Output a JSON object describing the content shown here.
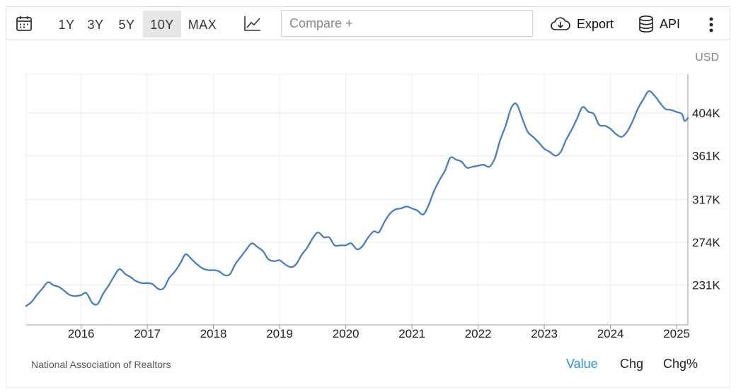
{
  "toolbar": {
    "ranges": [
      {
        "label": "1Y",
        "active": false
      },
      {
        "label": "3Y",
        "active": false
      },
      {
        "label": "5Y",
        "active": false
      },
      {
        "label": "10Y",
        "active": true
      },
      {
        "label": "MAX",
        "active": false
      }
    ],
    "compare_placeholder": "Compare +",
    "export_label": "Export",
    "api_label": "API",
    "icons": {
      "calendar": "calendar-icon",
      "chart_type": "line-chart-icon",
      "export": "cloud-download-icon",
      "api": "database-icon",
      "more": "more-vertical-icon"
    }
  },
  "unit": "USD",
  "source": "National Association of Realtors",
  "view_tabs": [
    {
      "label": "Value",
      "active": true
    },
    {
      "label": "Chg",
      "active": false
    },
    {
      "label": "Chg%",
      "active": false
    }
  ],
  "colors": {
    "line": "#4a7ebb",
    "active_tab": "#2a90d9",
    "grid": "#ececec"
  },
  "chart_data": {
    "type": "line",
    "title": "",
    "xlabel": "",
    "ylabel": "",
    "unit": "USD",
    "xlim": [
      2015.17,
      2025.17
    ],
    "ylim": [
      191000,
      443000
    ],
    "x_ticks": [
      {
        "value": 2016,
        "label": "2016"
      },
      {
        "value": 2017,
        "label": "2017"
      },
      {
        "value": 2018,
        "label": "2018"
      },
      {
        "value": 2019,
        "label": "2019"
      },
      {
        "value": 2020,
        "label": "2020"
      },
      {
        "value": 2021,
        "label": "2021"
      },
      {
        "value": 2022,
        "label": "2022"
      },
      {
        "value": 2023,
        "label": "2023"
      },
      {
        "value": 2024,
        "label": "2024"
      },
      {
        "value": 2025,
        "label": "2025"
      }
    ],
    "y_ticks": [
      {
        "value": 231000,
        "label": "231K"
      },
      {
        "value": 274000,
        "label": "274K"
      },
      {
        "value": 317000,
        "label": "317K"
      },
      {
        "value": 361000,
        "label": "361K"
      },
      {
        "value": 404000,
        "label": "404K"
      }
    ],
    "grid": true,
    "series": [
      {
        "name": "",
        "points": [
          [
            2015.17,
            210000
          ],
          [
            2015.25,
            214000
          ],
          [
            2015.33,
            221000
          ],
          [
            2015.42,
            228000
          ],
          [
            2015.5,
            234000
          ],
          [
            2015.58,
            231000
          ],
          [
            2015.67,
            229000
          ],
          [
            2015.75,
            225000
          ],
          [
            2015.83,
            221000
          ],
          [
            2015.92,
            220000
          ],
          [
            2016.0,
            221000
          ],
          [
            2016.08,
            223000
          ],
          [
            2016.17,
            213000
          ],
          [
            2016.25,
            212000
          ],
          [
            2016.33,
            222000
          ],
          [
            2016.42,
            231000
          ],
          [
            2016.5,
            240000
          ],
          [
            2016.58,
            247000
          ],
          [
            2016.67,
            242000
          ],
          [
            2016.75,
            239000
          ],
          [
            2016.83,
            235000
          ],
          [
            2016.92,
            233000
          ],
          [
            2017.0,
            233000
          ],
          [
            2017.08,
            232000
          ],
          [
            2017.17,
            227000
          ],
          [
            2017.25,
            228000
          ],
          [
            2017.33,
            238000
          ],
          [
            2017.42,
            245000
          ],
          [
            2017.5,
            253000
          ],
          [
            2017.58,
            262000
          ],
          [
            2017.67,
            257000
          ],
          [
            2017.75,
            252000
          ],
          [
            2017.83,
            248000
          ],
          [
            2017.92,
            246000
          ],
          [
            2018.0,
            246000
          ],
          [
            2018.08,
            245000
          ],
          [
            2018.17,
            241000
          ],
          [
            2018.25,
            242000
          ],
          [
            2018.33,
            252000
          ],
          [
            2018.42,
            260000
          ],
          [
            2018.5,
            267000
          ],
          [
            2018.58,
            273000
          ],
          [
            2018.67,
            269000
          ],
          [
            2018.75,
            265000
          ],
          [
            2018.83,
            257000
          ],
          [
            2018.92,
            255000
          ],
          [
            2019.0,
            256000
          ],
          [
            2019.08,
            252000
          ],
          [
            2019.17,
            249000
          ],
          [
            2019.25,
            252000
          ],
          [
            2019.33,
            261000
          ],
          [
            2019.42,
            269000
          ],
          [
            2019.5,
            278000
          ],
          [
            2019.58,
            284000
          ],
          [
            2019.67,
            279000
          ],
          [
            2019.75,
            279000
          ],
          [
            2019.83,
            271000
          ],
          [
            2019.92,
            271000
          ],
          [
            2020.0,
            271000
          ],
          [
            2020.08,
            273000
          ],
          [
            2020.17,
            267000
          ],
          [
            2020.25,
            270000
          ],
          [
            2020.33,
            278000
          ],
          [
            2020.42,
            285000
          ],
          [
            2020.5,
            284000
          ],
          [
            2020.58,
            294000
          ],
          [
            2020.67,
            303000
          ],
          [
            2020.75,
            307000
          ],
          [
            2020.83,
            308000
          ],
          [
            2020.92,
            310000
          ],
          [
            2021.0,
            308000
          ],
          [
            2021.08,
            306000
          ],
          [
            2021.17,
            302000
          ],
          [
            2021.25,
            311000
          ],
          [
            2021.33,
            325000
          ],
          [
            2021.42,
            337000
          ],
          [
            2021.5,
            346000
          ],
          [
            2021.58,
            359000
          ],
          [
            2021.67,
            357000
          ],
          [
            2021.75,
            355000
          ],
          [
            2021.83,
            349000
          ],
          [
            2021.92,
            350000
          ],
          [
            2022.0,
            351000
          ],
          [
            2022.08,
            352000
          ],
          [
            2022.17,
            350000
          ],
          [
            2022.25,
            358000
          ],
          [
            2022.33,
            376000
          ],
          [
            2022.42,
            392000
          ],
          [
            2022.5,
            409000
          ],
          [
            2022.58,
            413000
          ],
          [
            2022.67,
            398000
          ],
          [
            2022.75,
            385000
          ],
          [
            2022.83,
            380000
          ],
          [
            2022.92,
            374000
          ],
          [
            2023.0,
            368000
          ],
          [
            2023.08,
            365000
          ],
          [
            2023.17,
            361000
          ],
          [
            2023.25,
            365000
          ],
          [
            2023.33,
            377000
          ],
          [
            2023.42,
            388000
          ],
          [
            2023.5,
            399000
          ],
          [
            2023.58,
            410000
          ],
          [
            2023.67,
            405000
          ],
          [
            2023.75,
            403000
          ],
          [
            2023.83,
            392000
          ],
          [
            2023.92,
            391000
          ],
          [
            2024.0,
            388000
          ],
          [
            2024.08,
            383000
          ],
          [
            2024.17,
            380000
          ],
          [
            2024.25,
            385000
          ],
          [
            2024.33,
            395000
          ],
          [
            2024.42,
            409000
          ],
          [
            2024.5,
            418000
          ],
          [
            2024.58,
            426000
          ],
          [
            2024.67,
            421000
          ],
          [
            2024.75,
            414000
          ],
          [
            2024.83,
            408000
          ],
          [
            2024.92,
            407000
          ],
          [
            2025.0,
            405000
          ],
          [
            2025.08,
            403000
          ],
          [
            2025.12,
            396000
          ],
          [
            2025.17,
            399000
          ]
        ]
      }
    ]
  }
}
